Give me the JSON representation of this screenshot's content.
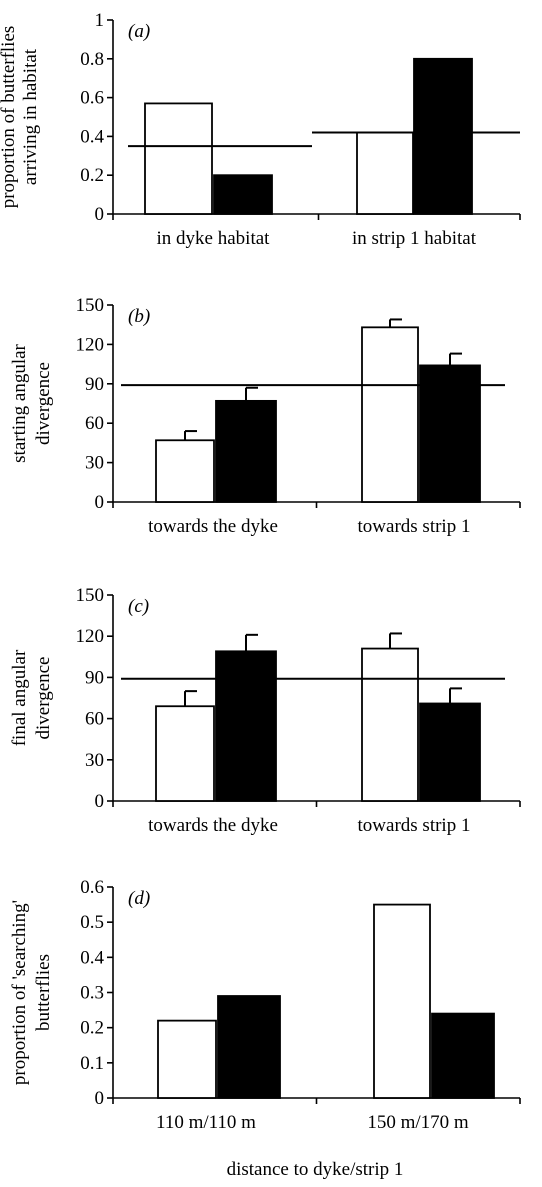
{
  "figure": {
    "xlabel": "distance to dyke/strip 1"
  },
  "chart_data": [
    {
      "type": "bar",
      "panel": "(a)",
      "ylabel": [
        "proportion of butterflies",
        "arriving in habitat"
      ],
      "categories": [
        "in dyke habitat",
        "in strip 1 habitat"
      ],
      "ylim": [
        0,
        1
      ],
      "yticks": [
        "0",
        "0.2",
        "0.4",
        "0.6",
        "0.8",
        "1"
      ],
      "series": [
        {
          "fill": "white",
          "values": [
            0.57,
            0.42
          ]
        },
        {
          "fill": "black",
          "values": [
            0.2,
            0.8
          ]
        }
      ],
      "reference_lines": [
        0.35,
        0.42
      ],
      "error_bars": false
    },
    {
      "type": "bar",
      "panel": "(b)",
      "ylabel": [
        "starting angular",
        "divergence"
      ],
      "categories": [
        "towards the dyke",
        "towards strip 1"
      ],
      "ylim": [
        0,
        150
      ],
      "yticks": [
        "0",
        "30",
        "60",
        "90",
        "120",
        "150"
      ],
      "series": [
        {
          "fill": "white",
          "values": [
            47,
            133
          ],
          "errors": [
            7,
            6
          ]
        },
        {
          "fill": "black",
          "values": [
            77,
            104
          ],
          "errors": [
            10,
            9
          ]
        }
      ],
      "reference_lines": [
        89
      ],
      "error_bars": true
    },
    {
      "type": "bar",
      "panel": "(c)",
      "ylabel": [
        "final angular",
        "divergence"
      ],
      "categories": [
        "towards the dyke",
        "towards strip 1"
      ],
      "ylim": [
        0,
        150
      ],
      "yticks": [
        "0",
        "30",
        "60",
        "90",
        "120",
        "150"
      ],
      "series": [
        {
          "fill": "white",
          "values": [
            69,
            111
          ],
          "errors": [
            11,
            11
          ]
        },
        {
          "fill": "black",
          "values": [
            109,
            71
          ],
          "errors": [
            12,
            11
          ]
        }
      ],
      "reference_lines": [
        89
      ],
      "error_bars": true
    },
    {
      "type": "bar",
      "panel": "(d)",
      "ylabel": [
        "proportion of 'searching'",
        "butterflies"
      ],
      "categories": [
        "110 m/110 m",
        "150 m/170 m"
      ],
      "ylim": [
        0,
        0.6
      ],
      "yticks": [
        "0",
        "0.1",
        "0.2",
        "0.3",
        "0.4",
        "0.5",
        "0.6"
      ],
      "series": [
        {
          "fill": "white",
          "values": [
            0.22,
            0.55
          ]
        },
        {
          "fill": "black",
          "values": [
            0.29,
            0.24
          ]
        }
      ],
      "reference_lines": [],
      "error_bars": false
    }
  ]
}
